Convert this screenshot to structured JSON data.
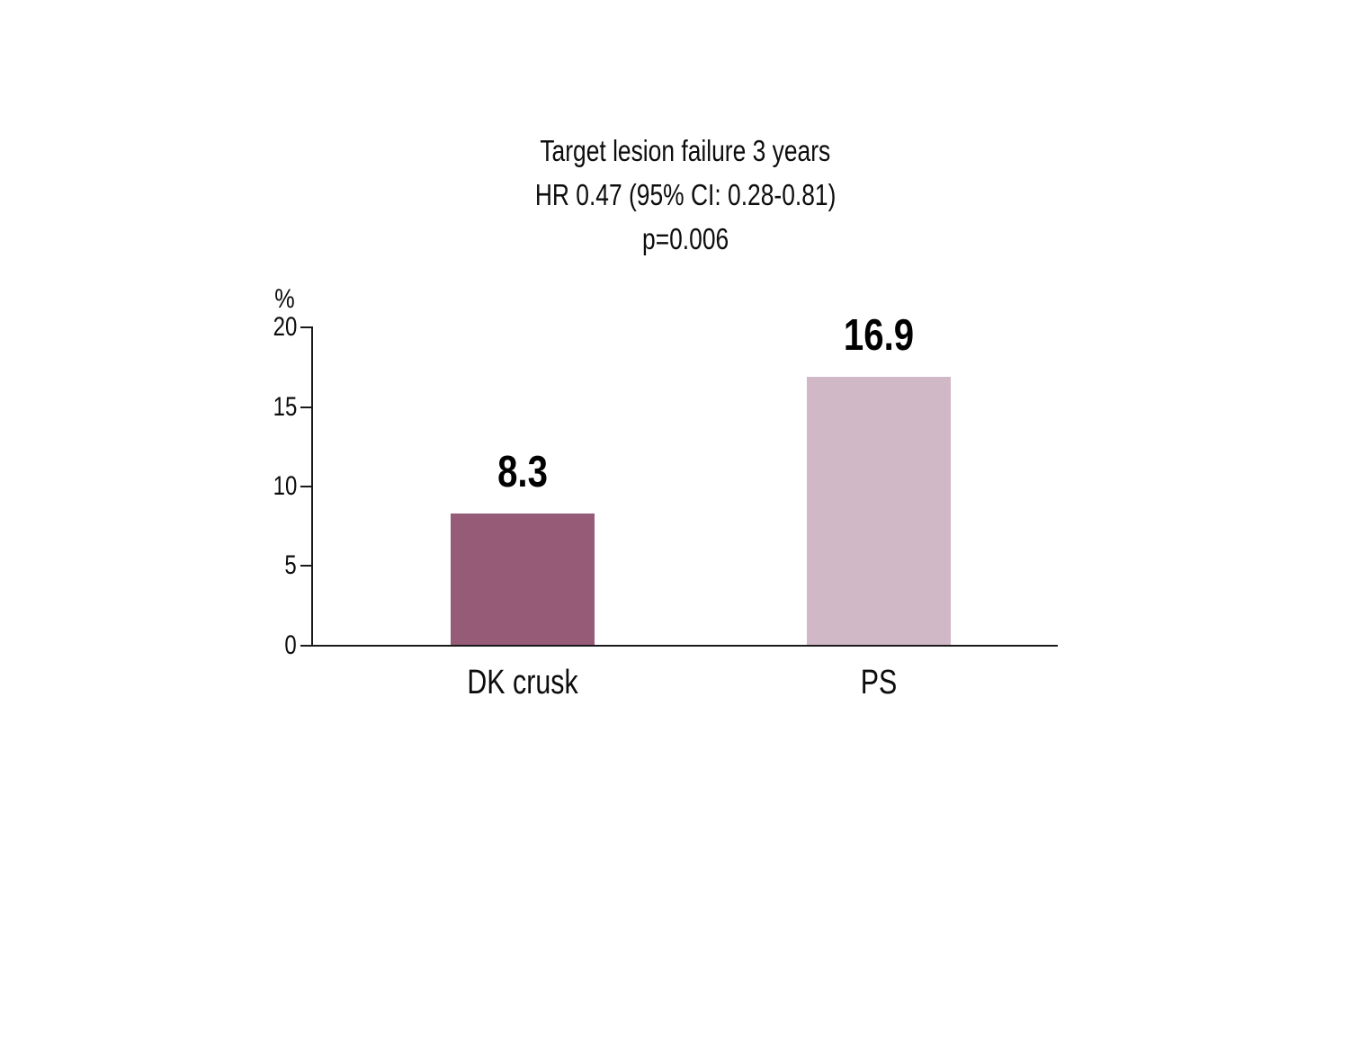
{
  "chart_data": {
    "type": "bar",
    "title": "Target lesion failure 3 years HR 0.47 (95% CI: 0.28-0.81) p=0.006",
    "title_lines": [
      "Target lesion failure 3 years",
      "HR 0.47 (95% CI: 0.28-0.81)",
      "p=0.006"
    ],
    "categories": [
      "DK crusk",
      "PS"
    ],
    "values": [
      8.3,
      16.9
    ],
    "value_labels": [
      "8.3",
      "16.9"
    ],
    "xlabel": "",
    "ylabel": "%",
    "yticks": [
      "20",
      "15",
      "10",
      "5",
      "0"
    ],
    "ylim": [
      0,
      20
    ],
    "grid": false,
    "legend": "none",
    "bar_colors": [
      "#965B77",
      "#D0B8C6"
    ],
    "axis_color": "#1A1A1A",
    "background_color": "#FFFFFF"
  }
}
